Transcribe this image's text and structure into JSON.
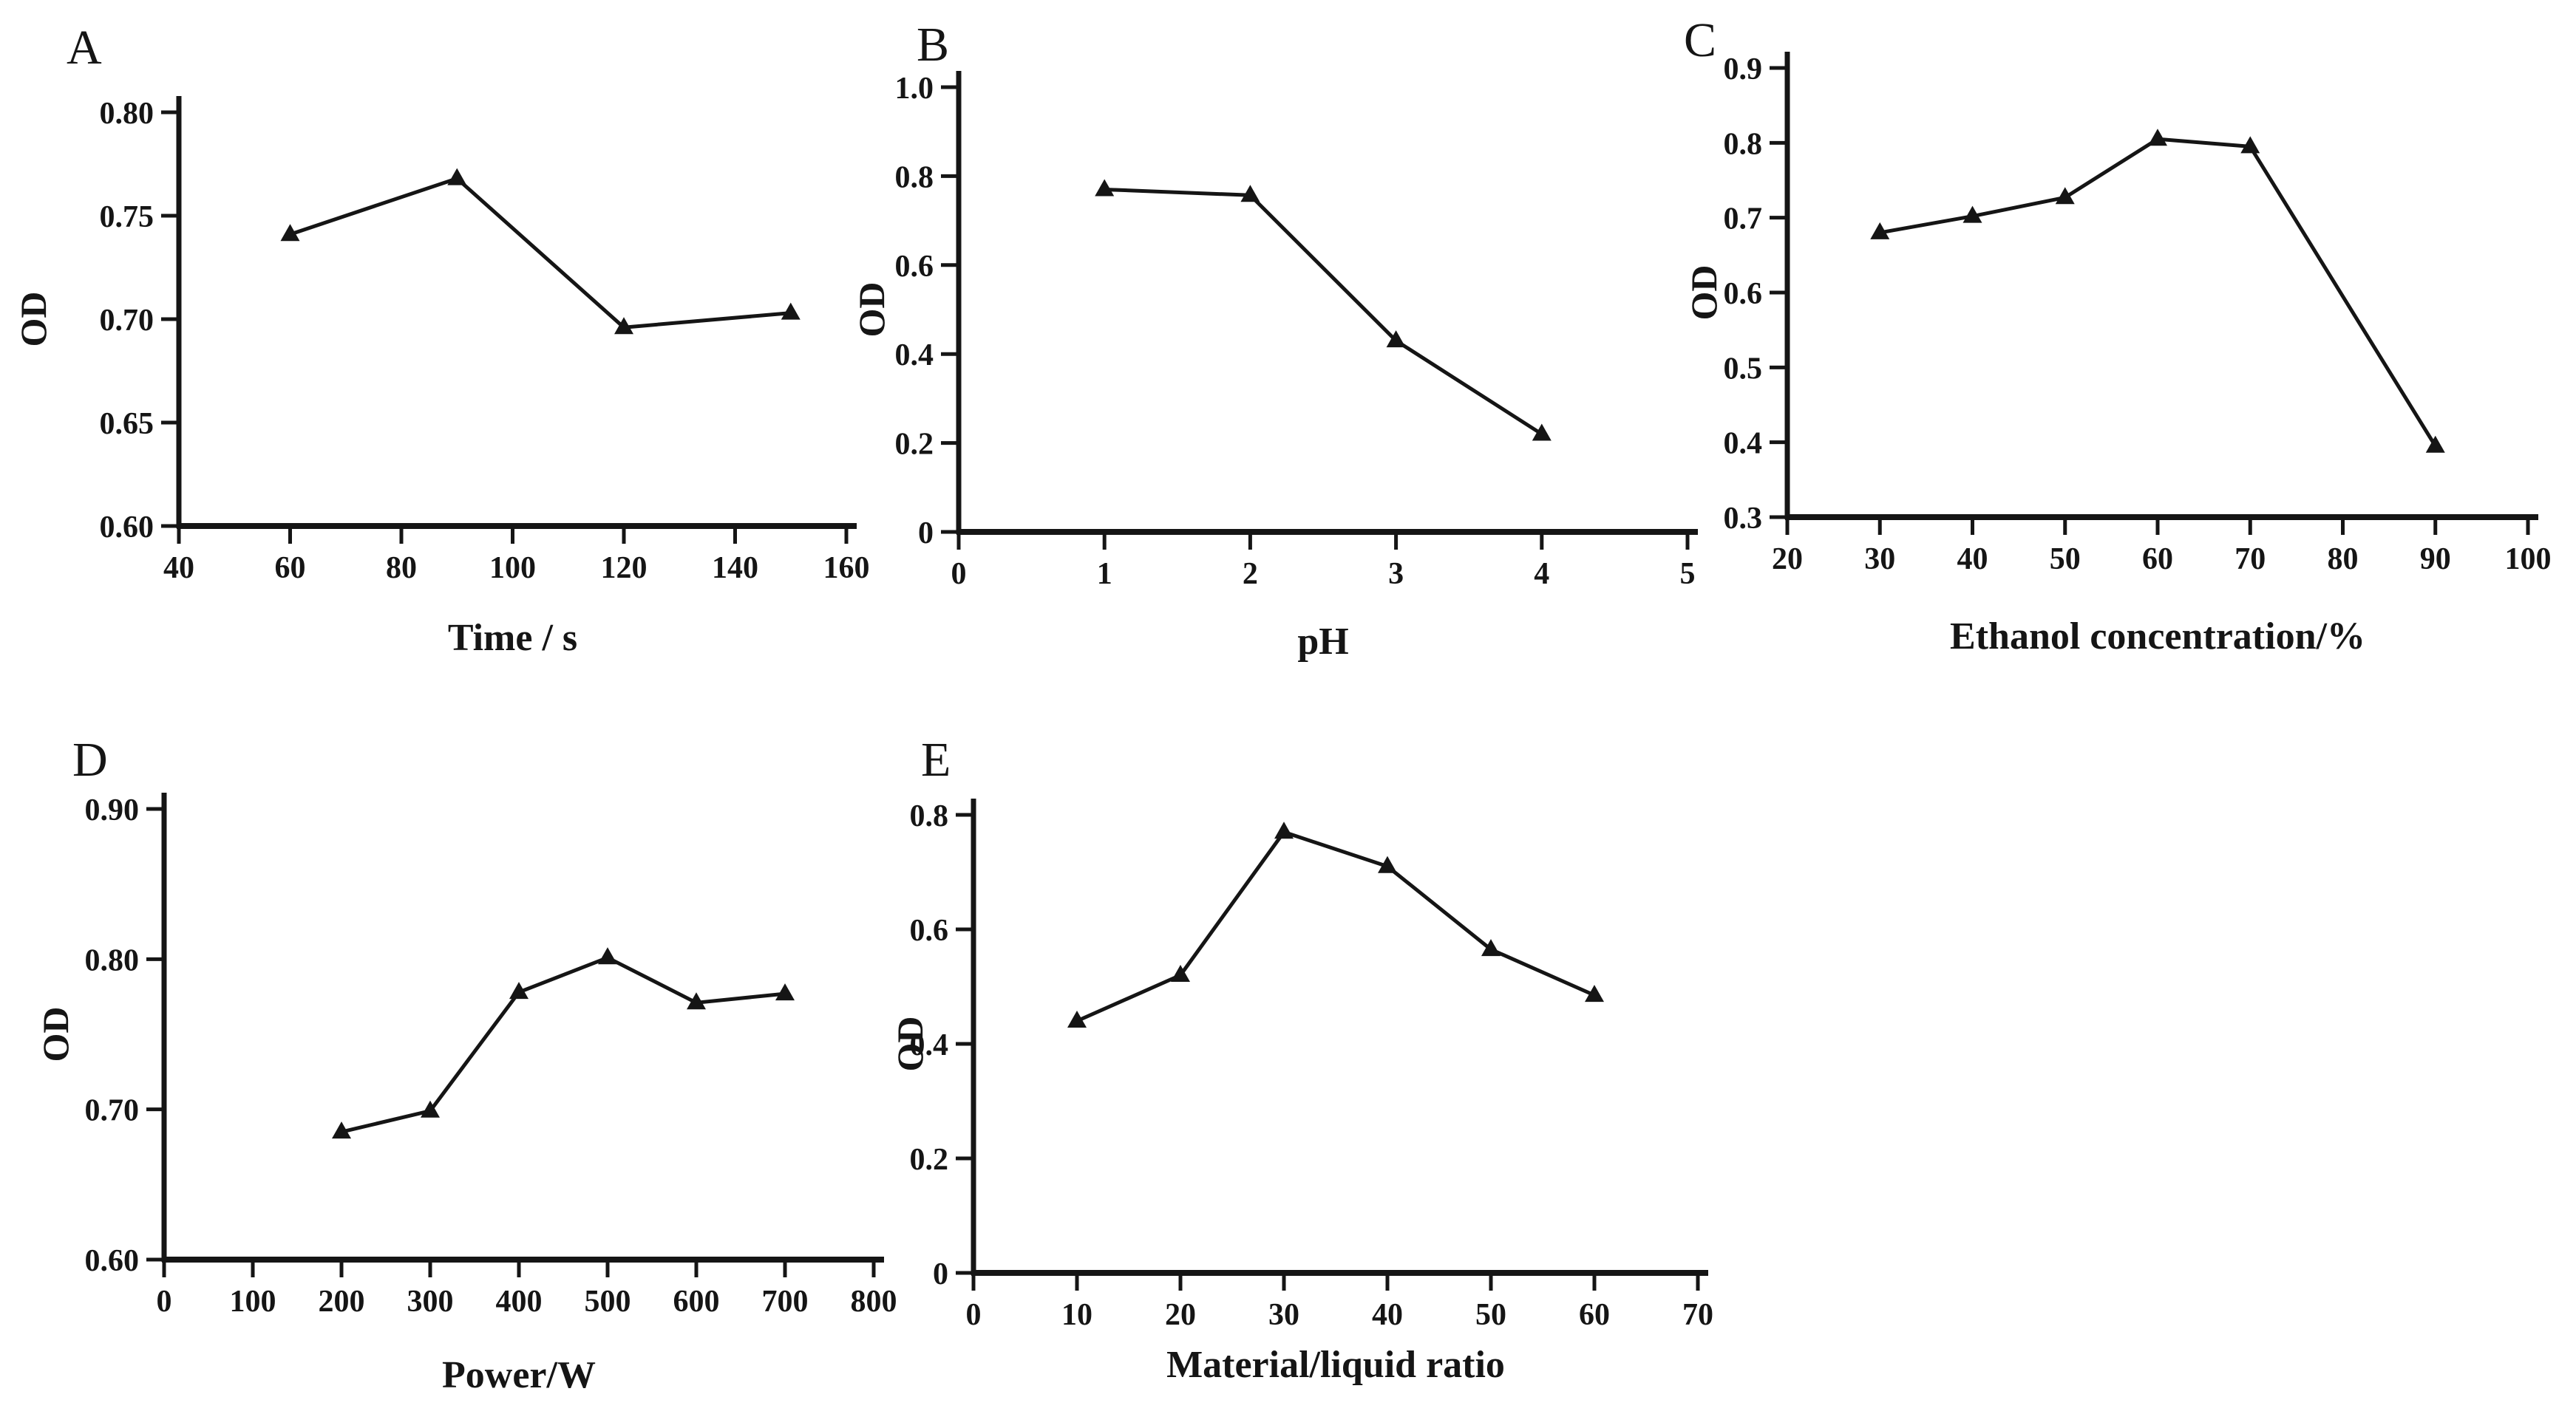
{
  "figure": {
    "background_color": "#ffffff",
    "ink_color": "#151515",
    "description_visible_text_only": "Five line-chart panels labeled A to E, each plotting OD versus an experimental variable"
  },
  "chart_data": [
    {
      "panel_label": "A",
      "type": "line",
      "xlabel": "Time / s",
      "ylabel": "OD",
      "x": [
        60,
        90,
        120,
        150
      ],
      "y": [
        0.741,
        0.768,
        0.696,
        0.703
      ],
      "xlim": [
        40,
        160
      ],
      "ylim": [
        0.6,
        0.8
      ],
      "x_ticks": [
        40,
        60,
        80,
        100,
        120,
        140,
        160
      ],
      "x_tick_labels": [
        "40",
        "60",
        "80",
        "100",
        "120",
        "140",
        "160"
      ],
      "y_ticks": [
        0.6,
        0.65,
        0.7,
        0.75,
        0.8
      ],
      "y_tick_labels": [
        "0.60",
        "0.65",
        "0.70",
        "0.75",
        "0.80"
      ],
      "marker": "filled-triangle-up",
      "line_color": "#151515",
      "grid": false,
      "legend": "none"
    },
    {
      "panel_label": "B",
      "type": "line",
      "xlabel": "pH",
      "ylabel": "OD",
      "x": [
        1,
        2,
        3,
        4
      ],
      "y": [
        0.77,
        0.757,
        0.43,
        0.22
      ],
      "xlim": [
        0,
        5
      ],
      "ylim": [
        0,
        1.0
      ],
      "x_ticks": [
        0,
        1,
        2,
        3,
        4,
        5
      ],
      "x_tick_labels": [
        "0",
        "1",
        "2",
        "3",
        "4",
        "5"
      ],
      "y_ticks": [
        0,
        0.2,
        0.4,
        0.6,
        0.8,
        1.0
      ],
      "y_tick_labels": [
        "0",
        "0.2",
        "0.4",
        "0.6",
        "0.8",
        "1.0"
      ],
      "marker": "filled-triangle-up",
      "line_color": "#151515",
      "grid": false,
      "legend": "none"
    },
    {
      "panel_label": "C",
      "type": "line",
      "xlabel": "Ethanol concentration/%",
      "ylabel": "OD",
      "x": [
        30,
        40,
        50,
        60,
        70,
        90
      ],
      "y": [
        0.68,
        0.702,
        0.727,
        0.805,
        0.795,
        0.395
      ],
      "xlim": [
        20,
        100
      ],
      "ylim": [
        0.3,
        0.9
      ],
      "x_ticks": [
        20,
        30,
        40,
        50,
        60,
        70,
        80,
        90,
        100
      ],
      "x_tick_labels": [
        "20",
        "30",
        "40",
        "50",
        "60",
        "70",
        "80",
        "90",
        "100"
      ],
      "y_ticks": [
        0.3,
        0.4,
        0.5,
        0.6,
        0.7,
        0.8,
        0.9
      ],
      "y_tick_labels": [
        "0.3",
        "0.4",
        "0.5",
        "0.6",
        "0.7",
        "0.8",
        "0.9"
      ],
      "marker": "filled-triangle-up",
      "line_color": "#151515",
      "grid": false,
      "legend": "none"
    },
    {
      "panel_label": "D",
      "type": "line",
      "xlabel": "Power/W",
      "ylabel": "OD",
      "x": [
        200,
        300,
        400,
        500,
        600,
        700
      ],
      "y": [
        0.685,
        0.699,
        0.778,
        0.801,
        0.771,
        0.777
      ],
      "xlim": [
        0,
        800
      ],
      "ylim": [
        0.6,
        0.9
      ],
      "x_ticks": [
        0,
        100,
        200,
        300,
        400,
        500,
        600,
        700,
        800
      ],
      "x_tick_labels": [
        "0",
        "100",
        "200",
        "300",
        "400",
        "500",
        "600",
        "700",
        "800"
      ],
      "y_ticks": [
        0.6,
        0.7,
        0.8,
        0.9
      ],
      "y_tick_labels": [
        "0.60",
        "0.70",
        "0.80",
        "0.90"
      ],
      "marker": "filled-triangle-up",
      "line_color": "#151515",
      "grid": false,
      "legend": "none"
    },
    {
      "panel_label": "E",
      "type": "line",
      "xlabel": "Material/liquid ratio",
      "ylabel": "OD",
      "x": [
        10,
        20,
        30,
        40,
        50,
        60
      ],
      "y": [
        0.44,
        0.52,
        0.77,
        0.71,
        0.565,
        0.485
      ],
      "xlim": [
        0,
        70
      ],
      "ylim": [
        0,
        0.8
      ],
      "x_ticks": [
        0,
        10,
        20,
        30,
        40,
        50,
        60,
        70
      ],
      "x_tick_labels": [
        "0",
        "10",
        "20",
        "30",
        "40",
        "50",
        "60",
        "70"
      ],
      "y_ticks": [
        0,
        0.2,
        0.4,
        0.6,
        0.8
      ],
      "y_tick_labels": [
        "0",
        "0.2",
        "0.4",
        "0.6",
        "0.8"
      ],
      "marker": "filled-triangle-up",
      "line_color": "#151515",
      "grid": false,
      "legend": "none"
    }
  ]
}
